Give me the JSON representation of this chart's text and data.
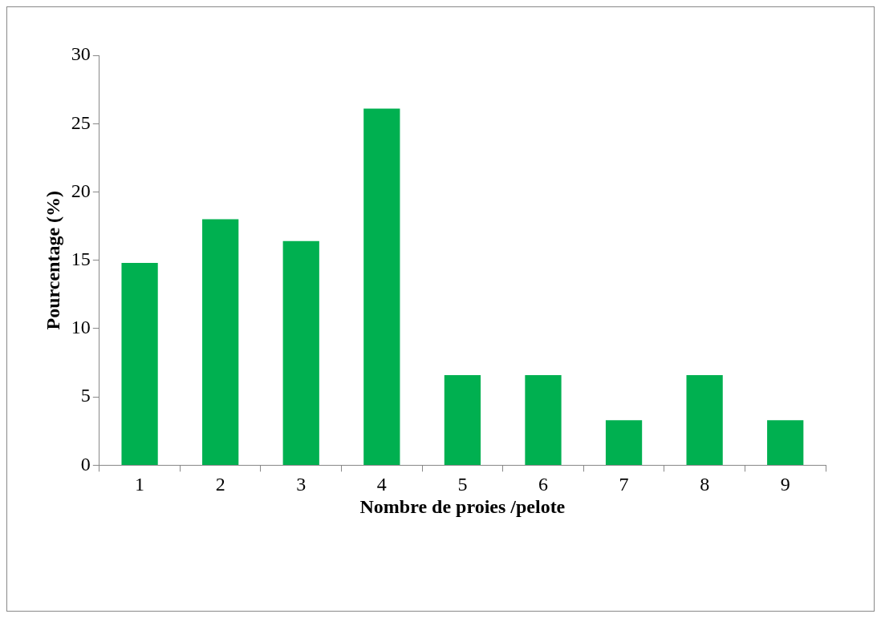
{
  "chart_data": {
    "type": "bar",
    "xlabel": "Nombre de proies /pelote",
    "ylabel": "Pourcentage (%)",
    "categories": [
      "1",
      "2",
      "3",
      "4",
      "5",
      "6",
      "7",
      "8",
      "9"
    ],
    "values": [
      14.8,
      18,
      16.4,
      26.1,
      6.6,
      6.6,
      3.3,
      6.6,
      3.3
    ],
    "color": "#00b050",
    "ylim": [
      0,
      30
    ],
    "yticks": [
      0,
      5,
      10,
      15,
      20,
      25,
      30
    ],
    "grid": false,
    "legend": false
  }
}
